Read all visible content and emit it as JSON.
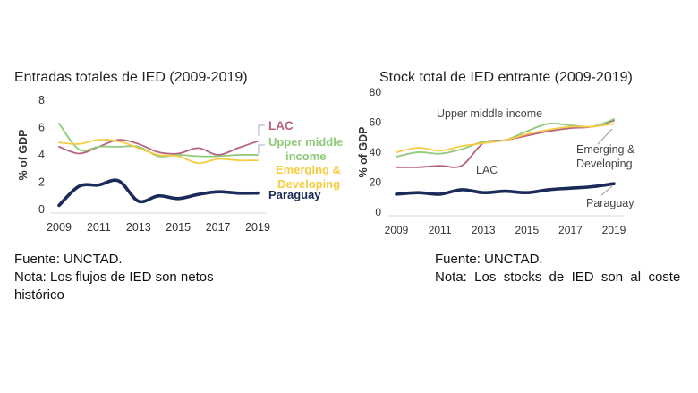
{
  "left": {
    "title": "Entradas totales de IED (2009-2019)",
    "source": "Fuente: UNCTAD.",
    "note_line1": "Nota: Los flujos de IED son netos",
    "note_line2": "histórico"
  },
  "right": {
    "title": "Stock total de IED entrante (2009-2019)",
    "source": "Fuente: UNCTAD.",
    "note_line1": "Nota:  Los  stocks  de  IED  son  al  coste"
  },
  "colors": {
    "LAC": "#b5637f",
    "Upper middle income": "#8fc97a",
    "Emerging & Developing": "#f5cc42",
    "Paraguay": "#1b2b59"
  },
  "chart_data": [
    {
      "type": "line",
      "title": "Entradas totales de IED (2009-2019)",
      "ylabel": "% of GDP",
      "ylim": [
        0,
        8
      ],
      "yticks": [
        0,
        2,
        4,
        6,
        8
      ],
      "xticks": [
        2009,
        2011,
        2013,
        2015,
        2017,
        2019
      ],
      "x": [
        2009,
        2010,
        2011,
        2012,
        2013,
        2014,
        2015,
        2016,
        2017,
        2018,
        2019
      ],
      "grid": false,
      "legend": "right, labels at line ends",
      "series": [
        {
          "name": "LAC",
          "label": "LAC",
          "color": "#b5637f",
          "values": [
            4.6,
            4.1,
            4.6,
            5.1,
            4.8,
            4.2,
            4.1,
            4.5,
            4.0,
            4.5,
            5.0
          ]
        },
        {
          "name": "Upper middle income",
          "label": "Upper middle income",
          "color": "#8fc97a",
          "values": [
            6.3,
            4.4,
            4.6,
            4.6,
            4.6,
            3.9,
            4.0,
            3.9,
            3.9,
            4.0,
            4.0
          ]
        },
        {
          "name": "Emerging & Developing",
          "label": "Emerging & Developing",
          "color": "#f5cc42",
          "values": [
            4.9,
            4.8,
            5.1,
            5.0,
            4.5,
            4.0,
            3.9,
            3.4,
            3.7,
            3.6,
            3.6
          ]
        },
        {
          "name": "Paraguay",
          "label": "Paraguay",
          "color": "#1b2b59",
          "values": [
            0.3,
            1.7,
            1.8,
            2.1,
            0.6,
            1.0,
            0.8,
            1.1,
            1.3,
            1.2,
            1.2
          ]
        }
      ]
    },
    {
      "type": "line",
      "title": "Stock total de IED entrante (2009-2019)",
      "ylabel": "% of GDP",
      "ylim": [
        0,
        80
      ],
      "yticks": [
        0,
        20,
        40,
        60,
        80
      ],
      "xticks": [
        2009,
        2011,
        2013,
        2015,
        2017,
        2019
      ],
      "x": [
        2009,
        2010,
        2011,
        2012,
        2013,
        2014,
        2015,
        2016,
        2017,
        2018,
        2019
      ],
      "grid": false,
      "legend": "labels next to lines",
      "series": [
        {
          "name": "LAC",
          "label": "LAC",
          "color": "#b5637f",
          "values": [
            30,
            30,
            31,
            31,
            46,
            48,
            51,
            54,
            56,
            57,
            61
          ]
        },
        {
          "name": "Upper middle income",
          "label": "Upper middle income",
          "color": "#8fc97a",
          "values": [
            37,
            40,
            39,
            42,
            47,
            48,
            54,
            59,
            58,
            57,
            62
          ]
        },
        {
          "name": "Emerging & Developing",
          "label": "Emerging & Developing",
          "color": "#f5cc42",
          "values": [
            40,
            43,
            41,
            44,
            46,
            48,
            52,
            55,
            57,
            57,
            59
          ]
        },
        {
          "name": "Paraguay",
          "label": "Paraguay",
          "color": "#1b2b59",
          "values": [
            12,
            13,
            12,
            15,
            13,
            14,
            13,
            15,
            16,
            17,
            19
          ]
        }
      ],
      "labels": {
        "Upper middle income": "Upper middle income",
        "Emerging & Developing": "Emerging & Developing",
        "LAC": "LAC",
        "Paraguay": "Paraguay"
      }
    }
  ]
}
